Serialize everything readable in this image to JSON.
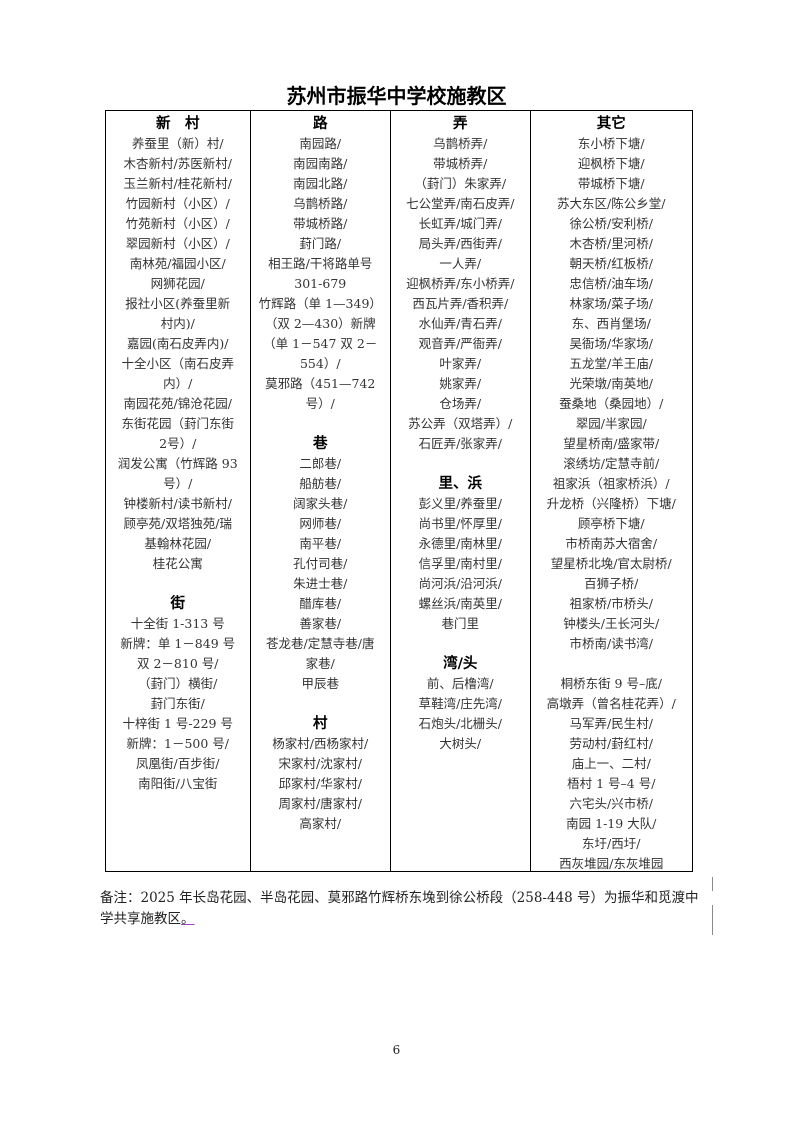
{
  "title": "苏州市振华中学校施教区",
  "columns": [
    {
      "lines": [
        {
          "t": "新　村",
          "h": true
        },
        {
          "t": "养蚕里（新）村/"
        },
        {
          "t": "木杏新村/苏医新村/"
        },
        {
          "t": "玉兰新村/桂花新村/"
        },
        {
          "t": "竹园新村（小区）/"
        },
        {
          "t": "竹苑新村（小区）/"
        },
        {
          "t": "翠园新村（小区）/"
        },
        {
          "t": "南林苑/福园小区/"
        },
        {
          "t": "网狮花园/"
        },
        {
          "t": "报社小区(养蚕里新"
        },
        {
          "t": "村内)/"
        },
        {
          "t": "嘉园(南石皮弄内)/"
        },
        {
          "t": "十全小区（南石皮弄"
        },
        {
          "t": "内）/"
        },
        {
          "t": "南园花苑/锦沧花园/"
        },
        {
          "t": "东街花园（葑门东街"
        },
        {
          "t": "2号）/"
        },
        {
          "t": "润发公寓（竹辉路 93"
        },
        {
          "t": "号）/"
        },
        {
          "t": "钟楼新村/读书新村/"
        },
        {
          "t": "顾亭苑/双塔独苑/瑞"
        },
        {
          "t": "基翰林花园/"
        },
        {
          "t": "桂花公寓"
        },
        {
          "t": ""
        },
        {
          "t": "街",
          "h": true
        },
        {
          "t": "十全街 1-313 号"
        },
        {
          "t": "新牌：单 1－849 号"
        },
        {
          "t": "双 2－810 号/"
        },
        {
          "t": "（葑门）横街/"
        },
        {
          "t": "葑门东街/"
        },
        {
          "t": "十梓街 1 号-229 号"
        },
        {
          "t": "新牌：1－500 号/"
        },
        {
          "t": "凤凰街/百步街/"
        },
        {
          "t": "南阳街/八宝街"
        }
      ]
    },
    {
      "lines": [
        {
          "t": "路",
          "h": true
        },
        {
          "t": "南园路/"
        },
        {
          "t": "南园南路/"
        },
        {
          "t": "南园北路/"
        },
        {
          "t": "乌鹊桥路/"
        },
        {
          "t": "带城桥路/"
        },
        {
          "t": "葑门路/"
        },
        {
          "t": "相王路/干将路单号"
        },
        {
          "t": "301-679"
        },
        {
          "t": "竹辉路（单 1—349）"
        },
        {
          "t": "（双 2—430）新牌"
        },
        {
          "t": "（单 1－547 双 2－"
        },
        {
          "t": "554）/"
        },
        {
          "t": "莫邪路（451—742"
        },
        {
          "t": "号）/"
        },
        {
          "t": ""
        },
        {
          "t": "巷",
          "h": true
        },
        {
          "t": "二郎巷/"
        },
        {
          "t": "船舫巷/"
        },
        {
          "t": "阔家头巷/"
        },
        {
          "t": "网师巷/"
        },
        {
          "t": "南平巷/"
        },
        {
          "t": "孔付司巷/"
        },
        {
          "t": "朱进士巷/"
        },
        {
          "t": "醋库巷/"
        },
        {
          "t": "善家巷/"
        },
        {
          "t": "苍龙巷/定慧寺巷/唐"
        },
        {
          "t": "家巷/"
        },
        {
          "t": "甲辰巷"
        },
        {
          "t": ""
        },
        {
          "t": "村",
          "h": true
        },
        {
          "t": "杨家村/西杨家村/"
        },
        {
          "t": "宋家村/沈家村/"
        },
        {
          "t": "邱家村/华家村/"
        },
        {
          "t": "周家村/唐家村/"
        },
        {
          "t": "高家村/"
        }
      ]
    },
    {
      "lines": [
        {
          "t": "弄",
          "h": true
        },
        {
          "t": "乌鹊桥弄/"
        },
        {
          "t": "带城桥弄/"
        },
        {
          "t": "（葑门）朱家弄/"
        },
        {
          "t": "七公堂弄/南石皮弄/"
        },
        {
          "t": "长虹弄/城门弄/"
        },
        {
          "t": "局头弄/西街弄/"
        },
        {
          "t": "一人弄/"
        },
        {
          "t": "迎枫桥弄/东小桥弄/"
        },
        {
          "t": "西瓦片弄/香积弄/"
        },
        {
          "t": "水仙弄/青石弄/"
        },
        {
          "t": "观音弄/严衙弄/"
        },
        {
          "t": "叶家弄/"
        },
        {
          "t": "姚家弄/"
        },
        {
          "t": "仓场弄/"
        },
        {
          "t": "苏公弄（双塔弄）/"
        },
        {
          "t": "石匠弄/张家弄/"
        },
        {
          "t": ""
        },
        {
          "t": "里、浜",
          "h": true
        },
        {
          "t": "彭义里/养蚕里/"
        },
        {
          "t": "尚书里/怀厚里/"
        },
        {
          "t": "永德里/南林里/"
        },
        {
          "t": "信孚里/南村里/"
        },
        {
          "t": "尚河浜/沿河浜/"
        },
        {
          "t": "螺丝浜/南英里/"
        },
        {
          "t": "巷门里"
        },
        {
          "t": ""
        },
        {
          "t": "湾/头",
          "h": true
        },
        {
          "t": "前、后橹湾/"
        },
        {
          "t": "草鞋湾/庄先湾/"
        },
        {
          "t": "石炮头/北栅头/"
        },
        {
          "t": "大树头/"
        }
      ]
    },
    {
      "lines": [
        {
          "t": "其它",
          "h": true
        },
        {
          "t": "东小桥下塘/"
        },
        {
          "t": "迎枫桥下塘/"
        },
        {
          "t": "带城桥下塘/"
        },
        {
          "t": "苏大东区/陈公乡堂/"
        },
        {
          "t": "徐公桥/安利桥/"
        },
        {
          "t": "木杏桥/里河桥/"
        },
        {
          "t": "朝天桥/红板桥/"
        },
        {
          "t": "忠信桥/油车场/"
        },
        {
          "t": "林家场/菜子场/"
        },
        {
          "t": "东、西肖堡场/"
        },
        {
          "t": "吴衙场/华家场/"
        },
        {
          "t": "五龙堂/羊王庙/"
        },
        {
          "t": "光荣墩/南英地/"
        },
        {
          "t": "蚕桑地（桑园地）/"
        },
        {
          "t": "翠园/半家园/"
        },
        {
          "t": "望星桥南/盛家带/"
        },
        {
          "t": "滚绣坊/定慧寺前/"
        },
        {
          "t": "祖家浜（祖家桥浜）/"
        },
        {
          "t": "升龙桥（兴隆桥）下塘/"
        },
        {
          "t": "顾亭桥下塘/"
        },
        {
          "t": "市桥南苏大宿舍/"
        },
        {
          "t": "望星桥北堍/官太尉桥/"
        },
        {
          "t": "百狮子桥/"
        },
        {
          "t": "祖家桥/市桥头/"
        },
        {
          "t": "钟楼头/王长河头/"
        },
        {
          "t": "市桥南/读书湾/"
        },
        {
          "t": ""
        },
        {
          "t": "桐桥东街 9 号–底/"
        },
        {
          "t": "高墩弄（曾名桂花弄）/"
        },
        {
          "t": "马军弄/民生村/"
        },
        {
          "t": "劳动村/葑红村/"
        },
        {
          "t": "庙上一、二村/"
        },
        {
          "t": "梧村 1 号–4 号/"
        },
        {
          "t": "六宅头/兴市桥/"
        },
        {
          "t": "南园 1-19 大队/"
        },
        {
          "t": "东圩/西圩/"
        },
        {
          "t": "西灰堆园/东灰堆园"
        }
      ]
    }
  ],
  "note": {
    "text": "备注：2025 年长岛花园、半岛花园、莫邪路竹辉桥东堍到徐公桥段（258-448 号）为振华和觅渡中学共享施教区",
    "end_mark": "。"
  },
  "page_number": "6"
}
